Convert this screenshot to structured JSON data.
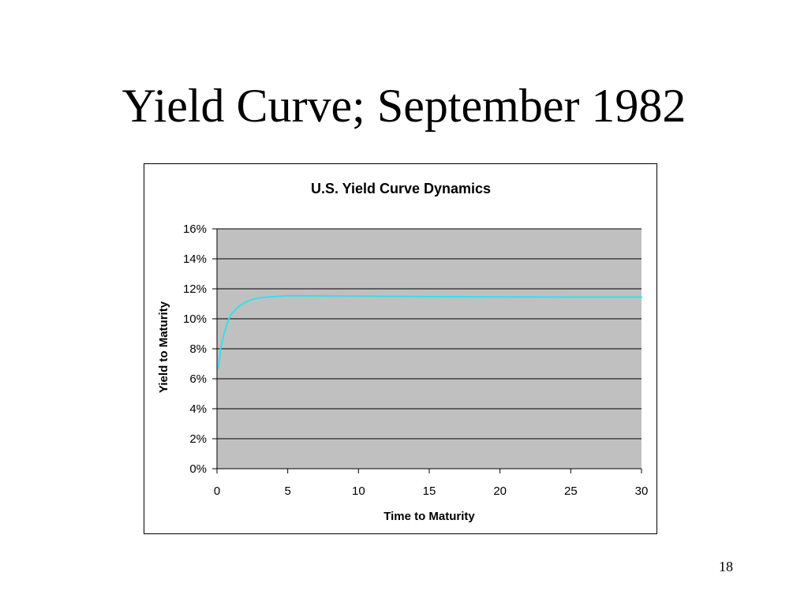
{
  "slide": {
    "title": "Yield Curve; September 1982",
    "page_number": "18"
  },
  "chart_data": {
    "type": "line",
    "title": "U.S. Yield Curve Dynamics",
    "xlabel": "Time to Maturity",
    "ylabel": "Yield to Maturity",
    "xlim": [
      0,
      30
    ],
    "ylim": [
      0,
      0.16
    ],
    "x_ticks": [
      "0",
      "5",
      "10",
      "15",
      "20",
      "25",
      "30"
    ],
    "y_ticks": [
      "0%",
      "2%",
      "4%",
      "6%",
      "8%",
      "10%",
      "12%",
      "14%",
      "16%"
    ],
    "grid": true,
    "legend": "none",
    "plot_background": "#c0c0c0",
    "series": [
      {
        "color": "#33e0e8",
        "x": [
          0.1,
          0.25,
          0.5,
          0.75,
          1,
          1.5,
          2,
          2.5,
          3,
          4,
          5,
          6,
          8,
          10,
          12,
          15,
          20,
          25,
          30
        ],
        "y": [
          0.067,
          0.08,
          0.09,
          0.098,
          0.103,
          0.108,
          0.111,
          0.113,
          0.114,
          0.1148,
          0.1153,
          0.1153,
          0.1152,
          0.1151,
          0.115,
          0.1148,
          0.1146,
          0.1145,
          0.1145
        ]
      }
    ]
  }
}
